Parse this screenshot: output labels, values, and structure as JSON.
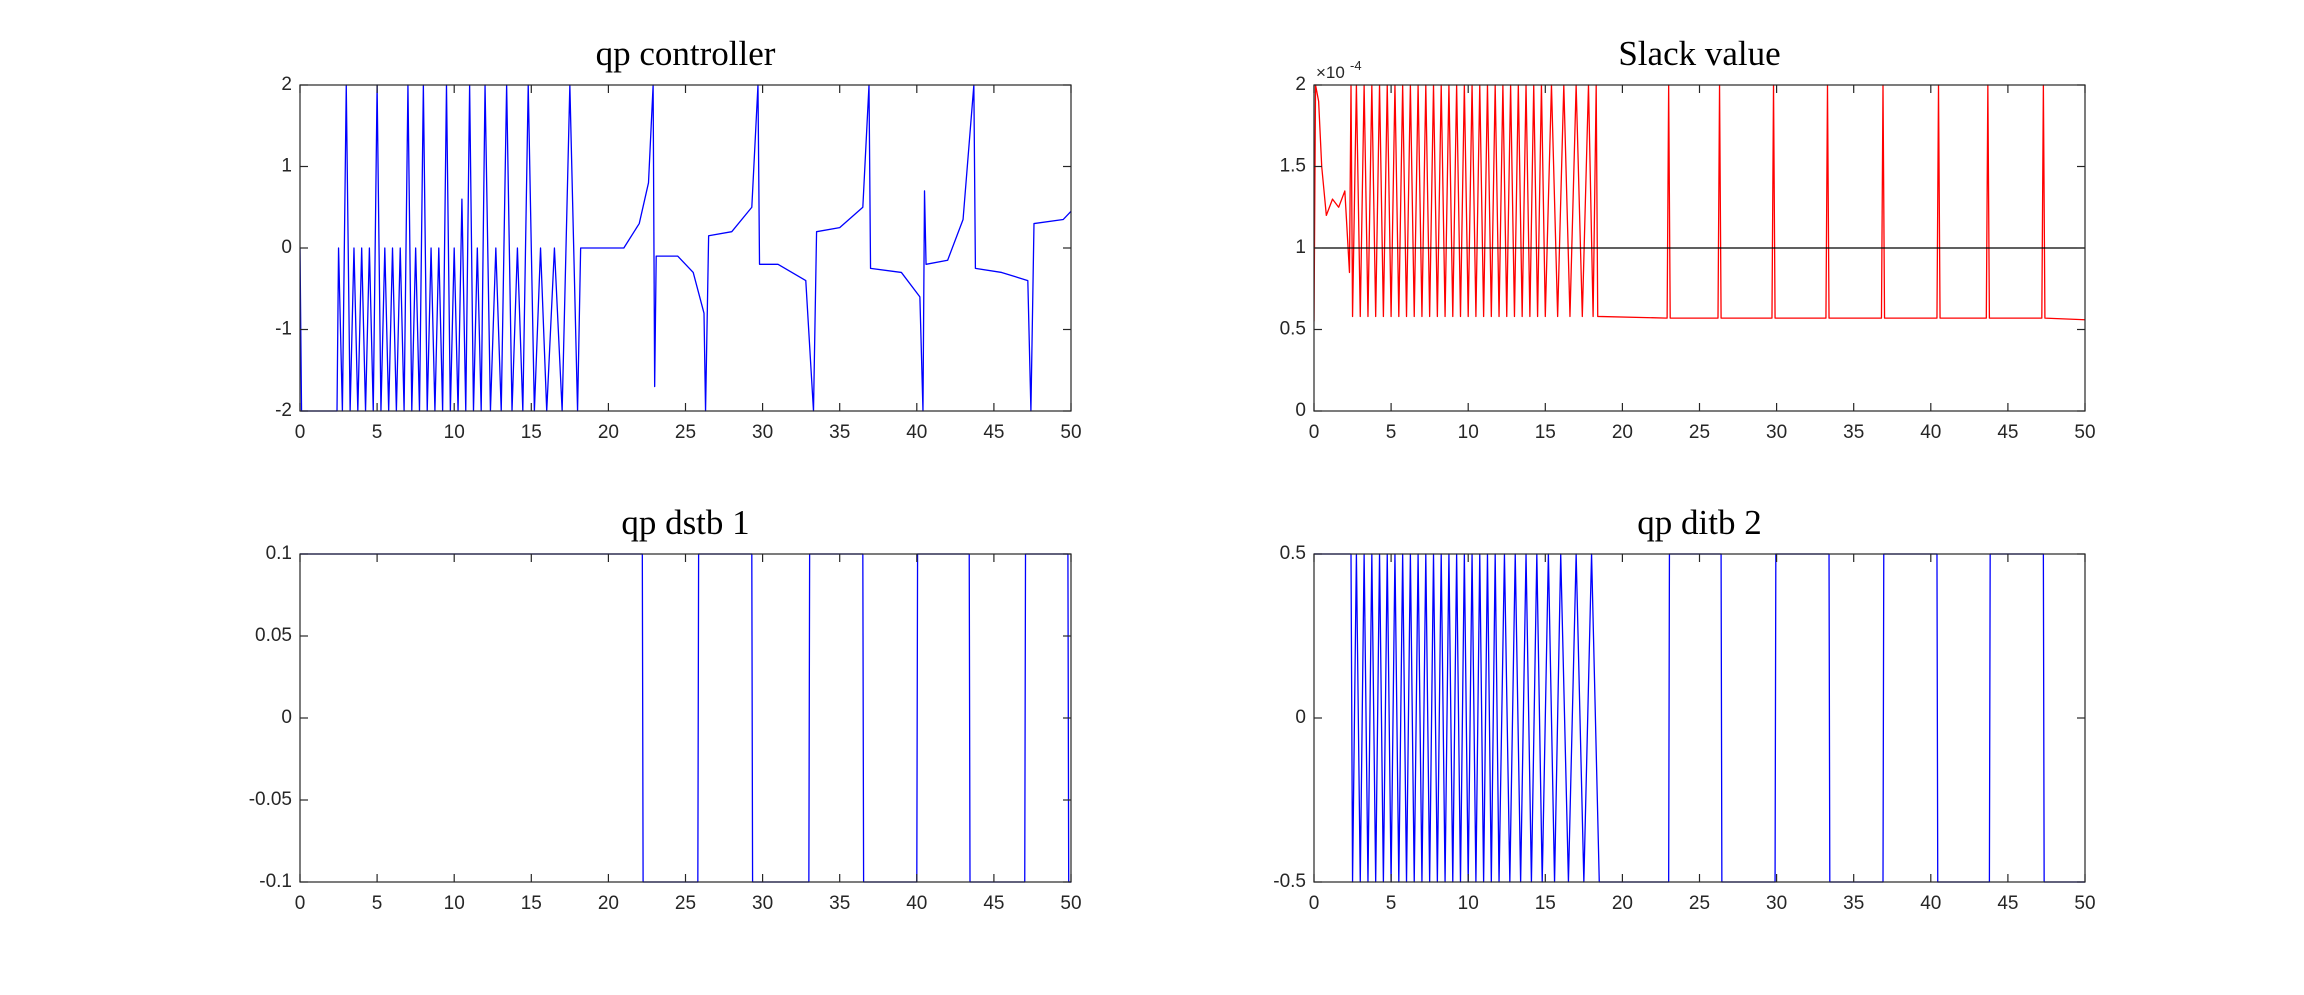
{
  "chart_data": [
    {
      "type": "line",
      "title": "qp controller",
      "xlim": [
        0,
        50
      ],
      "xticks": [
        0,
        5,
        10,
        15,
        20,
        25,
        30,
        35,
        40,
        45,
        50
      ],
      "ylim": [
        -2,
        2
      ],
      "yticks": [
        -2,
        -1,
        0,
        1,
        2
      ],
      "series": [
        {
          "color": "#0000ff",
          "x": [
            0,
            0.1,
            2.4,
            2.5,
            2.75,
            3.0,
            3.25,
            3.5,
            3.75,
            4.0,
            4.25,
            4.5,
            4.75,
            5.0,
            5.25,
            5.5,
            5.75,
            6.0,
            6.25,
            6.5,
            6.75,
            7.0,
            7.25,
            7.5,
            7.75,
            8.0,
            8.25,
            8.5,
            8.75,
            9.0,
            9.25,
            9.5,
            9.75,
            10.0,
            10.25,
            10.5,
            10.75,
            11.0,
            11.25,
            11.5,
            11.75,
            12.0,
            12.35,
            12.7,
            13.05,
            13.4,
            13.75,
            14.1,
            14.45,
            14.8,
            15.2,
            15.6,
            16.0,
            16.5,
            17.0,
            17.5,
            18.0,
            18.2,
            21.0,
            22.0,
            22.6,
            22.9,
            23.0,
            23.1,
            24.5,
            25.5,
            26.2,
            26.3,
            26.5,
            28.0,
            29.3,
            29.7,
            29.8,
            31.0,
            32.8,
            33.3,
            33.5,
            35.0,
            36.5,
            36.9,
            37.0,
            39.0,
            40.2,
            40.4,
            40.5,
            40.6,
            42.0,
            43.0,
            43.7,
            43.8,
            45.5,
            47.2,
            47.4,
            47.6,
            49.5,
            50
          ],
          "values": [
            0,
            -2,
            -2,
            0,
            -2,
            2,
            -2,
            0,
            -2,
            0,
            -2,
            0,
            -2,
            2,
            -2,
            0,
            -2,
            0,
            -2,
            0,
            -2,
            2,
            -2,
            0,
            -2,
            2,
            -2,
            0,
            -2,
            0,
            -2,
            2,
            -2,
            0,
            -2,
            0.6,
            -2,
            2,
            -2,
            0,
            -2,
            2,
            -2,
            0,
            -2,
            2,
            -2,
            0,
            -2,
            2,
            -2,
            0,
            -2,
            0,
            -2,
            2,
            -2,
            0,
            0,
            0.3,
            0.8,
            2,
            -1.7,
            -0.1,
            -0.1,
            -0.3,
            -0.8,
            -2,
            0.15,
            0.2,
            0.5,
            2,
            -0.2,
            -0.2,
            -0.4,
            -2,
            0.2,
            0.25,
            0.5,
            2,
            -0.25,
            -0.3,
            -0.6,
            -2,
            0.7,
            -0.2,
            -0.15,
            0.35,
            2,
            -0.25,
            -0.3,
            -0.4,
            -2,
            0.3,
            0.35,
            0.45
          ]
        }
      ]
    },
    {
      "type": "line",
      "title": "Slack value",
      "y_scale_label": {
        "base": "×10",
        "exponent": "-4"
      },
      "xlim": [
        0,
        50
      ],
      "xticks": [
        0,
        5,
        10,
        15,
        20,
        25,
        30,
        35,
        40,
        45,
        50
      ],
      "ylim": [
        0,
        2
      ],
      "yticks": [
        0,
        0.5,
        1,
        1.5,
        2
      ],
      "series": [
        {
          "color": "#ff0000",
          "x": [
            0,
            0.1,
            0.3,
            0.5,
            0.8,
            1.2,
            1.6,
            2.0,
            2.3,
            2.4,
            2.5,
            2.75,
            3.0,
            3.25,
            3.5,
            3.75,
            4.0,
            4.25,
            4.5,
            4.75,
            5.0,
            5.25,
            5.5,
            5.75,
            6.0,
            6.25,
            6.5,
            6.75,
            7.0,
            7.25,
            7.5,
            7.75,
            8.0,
            8.25,
            8.5,
            8.75,
            9.0,
            9.25,
            9.5,
            9.75,
            10.0,
            10.25,
            10.5,
            10.75,
            11.0,
            11.25,
            11.5,
            11.75,
            12.0,
            12.25,
            12.5,
            12.75,
            13.0,
            13.25,
            13.5,
            13.75,
            14.0,
            14.25,
            14.5,
            14.75,
            15.0,
            15.4,
            15.8,
            16.2,
            16.6,
            17.0,
            17.4,
            17.8,
            18.1,
            18.3,
            18.4,
            22.9,
            23.0,
            23.1,
            26.2,
            26.3,
            26.4,
            29.7,
            29.8,
            29.9,
            33.2,
            33.3,
            33.4,
            36.8,
            36.9,
            37.0,
            40.4,
            40.5,
            40.6,
            43.6,
            43.7,
            43.8,
            47.2,
            47.3,
            47.4,
            50
          ],
          "values": [
            0.55,
            2,
            1.9,
            1.5,
            1.2,
            1.3,
            1.25,
            1.35,
            0.85,
            2,
            0.58,
            2,
            0.58,
            2,
            0.58,
            2,
            0.58,
            2,
            0.58,
            2,
            0.58,
            2,
            0.58,
            2,
            0.58,
            2,
            0.58,
            2,
            0.58,
            2,
            0.58,
            2,
            0.58,
            2,
            0.58,
            2,
            0.58,
            2,
            0.58,
            2,
            0.58,
            2,
            0.58,
            2,
            0.58,
            2,
            0.58,
            2,
            0.58,
            2,
            0.58,
            2,
            0.58,
            2,
            0.58,
            2,
            0.58,
            2,
            0.58,
            2,
            0.58,
            2,
            0.58,
            2,
            0.58,
            2,
            0.58,
            2,
            0.58,
            2,
            0.58,
            0.57,
            2,
            0.57,
            0.57,
            2,
            0.57,
            0.57,
            2,
            0.57,
            0.57,
            2,
            0.57,
            0.57,
            2,
            0.57,
            0.57,
            2,
            0.57,
            0.57,
            2,
            0.57,
            0.57,
            2,
            0.57,
            0.56
          ]
        },
        {
          "color": "#000000",
          "x": [
            0,
            50
          ],
          "values": [
            1,
            1
          ]
        }
      ]
    },
    {
      "type": "line",
      "title": "qp dstb 1",
      "xlim": [
        0,
        50
      ],
      "xticks": [
        0,
        5,
        10,
        15,
        20,
        25,
        30,
        35,
        40,
        45,
        50
      ],
      "ylim": [
        -0.1,
        0.1
      ],
      "yticks": [
        -0.1,
        -0.05,
        0,
        0.05,
        0.1
      ],
      "series": [
        {
          "color": "#0000ff",
          "x": [
            0,
            22.2,
            22.25,
            25.8,
            25.85,
            29.3,
            29.35,
            33.0,
            33.05,
            36.5,
            36.55,
            40.0,
            40.05,
            43.4,
            43.45,
            47.0,
            47.05,
            49.8,
            49.85,
            50
          ],
          "values": [
            0.1,
            0.1,
            -0.1,
            -0.1,
            0.1,
            0.1,
            -0.1,
            -0.1,
            0.1,
            0.1,
            -0.1,
            -0.1,
            0.1,
            0.1,
            -0.1,
            -0.1,
            0.1,
            0.1,
            -0.1,
            -0.1
          ]
        }
      ]
    },
    {
      "type": "line",
      "title": "qp ditb 2",
      "xlim": [
        0,
        50
      ],
      "xticks": [
        0,
        5,
        10,
        15,
        20,
        25,
        30,
        35,
        40,
        45,
        50
      ],
      "ylim": [
        -0.5,
        0.5
      ],
      "yticks": [
        -0.5,
        0,
        0.5
      ],
      "series": [
        {
          "color": "#0000ff",
          "x": [
            0,
            2.4,
            2.5,
            2.75,
            3.0,
            3.25,
            3.5,
            3.75,
            4.0,
            4.25,
            4.5,
            4.75,
            5.0,
            5.25,
            5.5,
            5.75,
            6.0,
            6.25,
            6.5,
            6.75,
            7.0,
            7.25,
            7.5,
            7.75,
            8.0,
            8.25,
            8.5,
            8.75,
            9.0,
            9.25,
            9.5,
            9.75,
            10.0,
            10.25,
            10.5,
            10.75,
            11.0,
            11.25,
            11.5,
            11.75,
            12.0,
            12.35,
            12.7,
            13.05,
            13.4,
            13.75,
            14.1,
            14.45,
            14.8,
            15.2,
            15.6,
            16.0,
            16.5,
            17.0,
            17.5,
            18.0,
            18.5,
            23.0,
            23.05,
            26.4,
            26.45,
            29.9,
            29.95,
            33.4,
            33.45,
            36.9,
            36.95,
            40.4,
            40.45,
            43.8,
            43.85,
            47.3,
            47.35,
            50
          ],
          "values": [
            0.5,
            0.5,
            -0.5,
            0.5,
            -0.5,
            0.5,
            -0.5,
            0.5,
            -0.5,
            0.5,
            -0.5,
            0.5,
            -0.5,
            0.5,
            -0.5,
            0.5,
            -0.5,
            0.5,
            -0.5,
            0.5,
            -0.5,
            0.5,
            -0.5,
            0.5,
            -0.5,
            0.5,
            -0.5,
            0.5,
            -0.5,
            0.5,
            -0.5,
            0.5,
            -0.5,
            0.5,
            -0.5,
            0.5,
            -0.5,
            0.5,
            -0.5,
            0.5,
            -0.5,
            0.5,
            -0.5,
            0.5,
            -0.5,
            0.5,
            -0.5,
            0.5,
            -0.5,
            0.5,
            -0.5,
            0.5,
            -0.5,
            0.5,
            -0.5,
            0.5,
            -0.5,
            -0.5,
            0.5,
            0.5,
            -0.5,
            -0.5,
            0.5,
            0.5,
            -0.5,
            -0.5,
            0.5,
            0.5,
            -0.5,
            -0.5,
            0.5,
            0.5,
            -0.5,
            -0.5
          ]
        }
      ]
    }
  ]
}
